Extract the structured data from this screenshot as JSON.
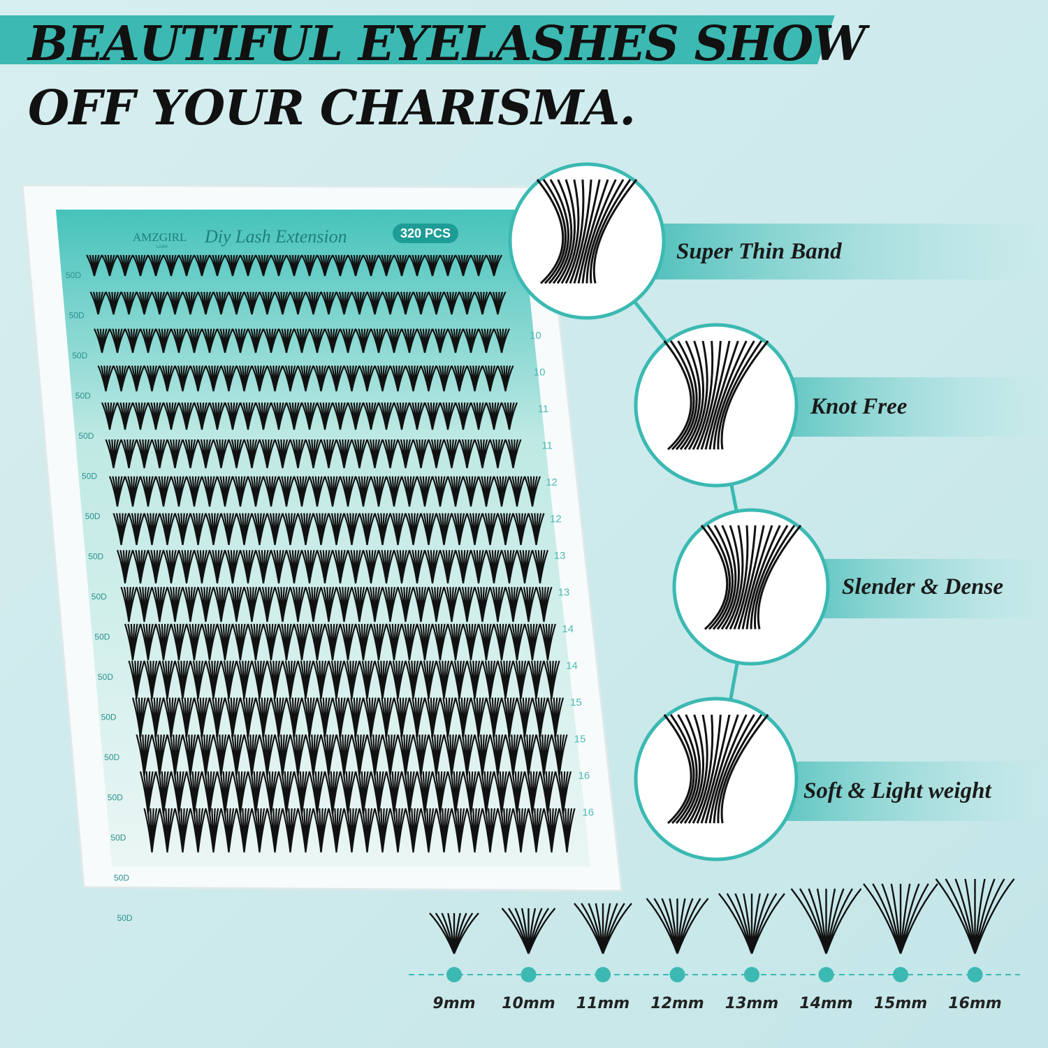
{
  "header": {
    "line1": "BEAUTIFUL EYELASHES SHOW",
    "line2": "OFF YOUR CHARISMA."
  },
  "tray": {
    "brand": "AMZGIRL",
    "brand_sub": "LASH",
    "product": "Diy Lash Extension",
    "count": "320 PCS",
    "row_labels": [
      "50D",
      "50D",
      "50D",
      "50D",
      "50D",
      "50D",
      "50D",
      "50D",
      "50D",
      "50D",
      "50D",
      "50D",
      "50D",
      "50D",
      "50D",
      "50D",
      "50D"
    ],
    "length_labels": [
      "10",
      "10",
      "11",
      "11",
      "12",
      "12",
      "13",
      "13",
      "14",
      "14",
      "15",
      "15",
      "16",
      "16"
    ]
  },
  "features": [
    "Super Thin Band",
    "Knot Free",
    "Slender & Dense",
    "Soft & Light weight"
  ],
  "sizes": [
    "9mm",
    "10mm",
    "11mm",
    "12mm",
    "13mm",
    "14mm",
    "15mm",
    "16mm"
  ]
}
